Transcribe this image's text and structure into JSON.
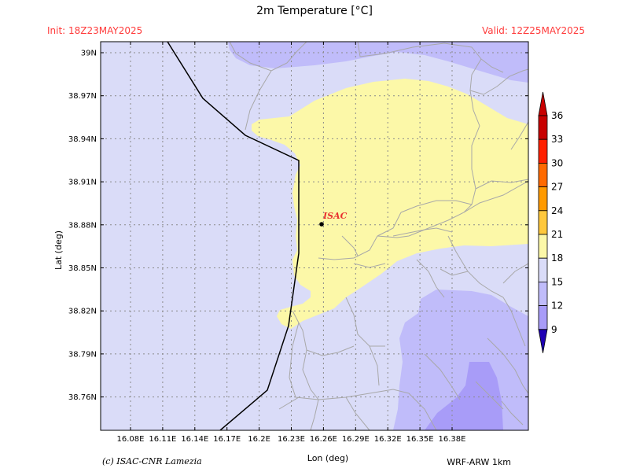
{
  "header": {
    "title": "2m Temperature [°C]",
    "init": "Init: 18Z23MAY2025",
    "valid": "Valid: 12Z25MAY2025"
  },
  "map": {
    "xlabel": "Lon (deg)",
    "ylabel": "Lat (deg)",
    "lon_ticks": [
      "16.08E",
      "16.11E",
      "16.14E",
      "16.17E",
      "16.2E",
      "16.23E",
      "16.26E",
      "16.29E",
      "16.32E",
      "16.35E",
      "16.38E"
    ],
    "lat_ticks": [
      "39N",
      "38.97N",
      "38.94N",
      "38.91N",
      "38.88N",
      "38.85N",
      "38.82N",
      "38.79N",
      "38.76N"
    ],
    "station_label": "ISAC",
    "fill_colors": {
      "t18_21": "#dadcf8",
      "t21_24": "#fcf8a8",
      "t15_18": "#c0bcfa",
      "t12_15": "#a89cf8"
    }
  },
  "colorbar": {
    "labels": [
      "36",
      "33",
      "30",
      "27",
      "24",
      "21",
      "18",
      "15",
      "12",
      "9"
    ],
    "colors": [
      "#c80000",
      "#ff2000",
      "#ff6a00",
      "#ff9a00",
      "#ffc83c",
      "#fcf8a8",
      "#dadcf8",
      "#c0bcfa",
      "#a89cf8",
      "#7c64e8"
    ],
    "arrow_top": "#c80000",
    "arrow_bottom": "#1e00b4"
  },
  "footer": {
    "credit": "(c) ISAC-CNR Lamezia",
    "model": "WRF-ARW 1km"
  }
}
